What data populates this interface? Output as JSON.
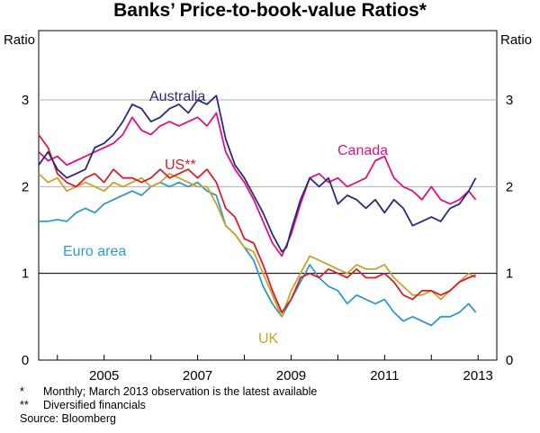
{
  "chart_data": {
    "type": "line",
    "title": "Banks’ Price-to-book-value Ratios*",
    "ylabel_left": "Ratio",
    "ylabel_right": "Ratio",
    "xlim": [
      2003.6,
      2013.4
    ],
    "ylim": [
      0,
      3.8
    ],
    "x_ticks": [
      2005,
      2007,
      2009,
      2011,
      2013
    ],
    "y_ticks": [
      0,
      1,
      2,
      3
    ],
    "reference_line": 1,
    "series": [
      {
        "name": "Australia",
        "color": "#2a2a7c",
        "x": [
          2003.6,
          2003.8,
          2004.0,
          2004.2,
          2004.4,
          2004.6,
          2004.8,
          2005.0,
          2005.2,
          2005.4,
          2005.6,
          2005.8,
          2006.0,
          2006.2,
          2006.4,
          2006.6,
          2006.8,
          2007.0,
          2007.2,
          2007.4,
          2007.6,
          2007.8,
          2008.0,
          2008.2,
          2008.4,
          2008.6,
          2008.8,
          2008.9,
          2009.0,
          2009.2,
          2009.4,
          2009.6,
          2009.8,
          2010.0,
          2010.2,
          2010.4,
          2010.6,
          2010.8,
          2011.0,
          2011.2,
          2011.4,
          2011.6,
          2011.8,
          2012.0,
          2012.2,
          2012.4,
          2012.6,
          2012.8,
          2012.95
        ],
        "values": [
          2.25,
          2.4,
          2.2,
          2.1,
          2.15,
          2.2,
          2.45,
          2.5,
          2.6,
          2.75,
          2.95,
          2.9,
          2.75,
          2.8,
          2.9,
          2.95,
          2.85,
          3.0,
          2.95,
          3.05,
          2.55,
          2.25,
          2.1,
          1.9,
          1.7,
          1.45,
          1.25,
          1.3,
          1.5,
          1.85,
          2.1,
          2.0,
          2.1,
          1.8,
          1.9,
          1.85,
          1.75,
          1.85,
          1.7,
          1.85,
          1.75,
          1.55,
          1.6,
          1.65,
          1.6,
          1.75,
          1.8,
          1.95,
          2.1
        ]
      },
      {
        "name": "Canada",
        "color": "#e0117f",
        "x": [
          2003.6,
          2003.8,
          2004.0,
          2004.2,
          2004.4,
          2004.6,
          2004.8,
          2005.0,
          2005.2,
          2005.4,
          2005.6,
          2005.8,
          2006.0,
          2006.2,
          2006.4,
          2006.6,
          2006.8,
          2007.0,
          2007.2,
          2007.4,
          2007.6,
          2007.8,
          2008.0,
          2008.2,
          2008.4,
          2008.6,
          2008.8,
          2009.0,
          2009.2,
          2009.4,
          2009.6,
          2009.8,
          2010.0,
          2010.2,
          2010.4,
          2010.6,
          2010.8,
          2011.0,
          2011.2,
          2011.4,
          2011.6,
          2011.8,
          2012.0,
          2012.2,
          2012.4,
          2012.6,
          2012.8,
          2012.95
        ],
        "values": [
          2.4,
          2.3,
          2.35,
          2.25,
          2.3,
          2.35,
          2.4,
          2.45,
          2.5,
          2.6,
          2.8,
          2.65,
          2.6,
          2.7,
          2.75,
          2.7,
          2.75,
          2.8,
          2.7,
          2.85,
          2.4,
          2.2,
          2.05,
          1.85,
          1.6,
          1.35,
          1.2,
          1.45,
          1.8,
          2.1,
          2.15,
          2.05,
          2.1,
          2.0,
          2.05,
          2.1,
          2.3,
          2.35,
          2.1,
          2.0,
          1.95,
          1.85,
          2.0,
          1.85,
          1.8,
          1.85,
          1.95,
          1.85
        ]
      },
      {
        "name": "US**",
        "color": "#d4202b",
        "x": [
          2003.6,
          2003.8,
          2004.0,
          2004.2,
          2004.4,
          2004.6,
          2004.8,
          2005.0,
          2005.2,
          2005.4,
          2005.6,
          2005.8,
          2006.0,
          2006.2,
          2006.4,
          2006.6,
          2006.8,
          2007.0,
          2007.2,
          2007.4,
          2007.6,
          2007.8,
          2008.0,
          2008.2,
          2008.4,
          2008.6,
          2008.8,
          2009.0,
          2009.2,
          2009.4,
          2009.6,
          2009.8,
          2010.0,
          2010.2,
          2010.4,
          2010.6,
          2010.8,
          2011.0,
          2011.2,
          2011.4,
          2011.6,
          2011.8,
          2012.0,
          2012.2,
          2012.4,
          2012.6,
          2012.8,
          2012.95
        ],
        "values": [
          2.6,
          2.45,
          2.15,
          2.05,
          2.0,
          2.1,
          2.15,
          2.05,
          2.2,
          2.1,
          2.1,
          2.05,
          2.1,
          2.2,
          2.1,
          2.15,
          2.2,
          2.1,
          2.2,
          2.05,
          1.75,
          1.65,
          1.4,
          1.35,
          1.1,
          0.8,
          0.55,
          0.7,
          0.95,
          1.0,
          0.95,
          1.05,
          1.0,
          0.95,
          1.05,
          0.95,
          0.95,
          1.0,
          0.9,
          0.75,
          0.7,
          0.8,
          0.8,
          0.75,
          0.8,
          0.9,
          0.95,
          0.98
        ]
      },
      {
        "name": "UK",
        "color": "#c8a42a",
        "x": [
          2003.6,
          2003.8,
          2004.0,
          2004.2,
          2004.4,
          2004.6,
          2004.8,
          2005.0,
          2005.2,
          2005.4,
          2005.6,
          2005.8,
          2006.0,
          2006.2,
          2006.4,
          2006.6,
          2006.8,
          2007.0,
          2007.2,
          2007.4,
          2007.6,
          2007.8,
          2008.0,
          2008.2,
          2008.4,
          2008.6,
          2008.8,
          2009.0,
          2009.2,
          2009.4,
          2009.6,
          2009.8,
          2010.0,
          2010.2,
          2010.4,
          2010.6,
          2010.8,
          2011.0,
          2011.2,
          2011.4,
          2011.6,
          2011.8,
          2012.0,
          2012.2,
          2012.4,
          2012.6,
          2012.8,
          2012.95
        ],
        "values": [
          2.15,
          2.05,
          2.1,
          1.95,
          2.0,
          2.05,
          2.0,
          1.95,
          2.05,
          2.0,
          2.05,
          2.1,
          2.0,
          2.05,
          2.15,
          2.1,
          2.05,
          2.0,
          2.0,
          1.8,
          1.55,
          1.45,
          1.3,
          1.25,
          1.0,
          0.75,
          0.5,
          0.8,
          1.0,
          1.2,
          1.15,
          1.1,
          1.05,
          1.0,
          1.1,
          1.05,
          1.05,
          1.1,
          0.95,
          0.85,
          0.75,
          0.75,
          0.8,
          0.7,
          0.8,
          0.9,
          1.0,
          0.95
        ]
      },
      {
        "name": "Euro area",
        "color": "#2f9ac8",
        "x": [
          2003.6,
          2003.8,
          2004.0,
          2004.2,
          2004.4,
          2004.6,
          2004.8,
          2005.0,
          2005.2,
          2005.4,
          2005.6,
          2005.8,
          2006.0,
          2006.2,
          2006.4,
          2006.6,
          2006.8,
          2007.0,
          2007.2,
          2007.4,
          2007.6,
          2007.8,
          2008.0,
          2008.2,
          2008.4,
          2008.6,
          2008.8,
          2009.0,
          2009.2,
          2009.4,
          2009.6,
          2009.8,
          2010.0,
          2010.2,
          2010.4,
          2010.6,
          2010.8,
          2011.0,
          2011.2,
          2011.4,
          2011.6,
          2011.8,
          2012.0,
          2012.2,
          2012.4,
          2012.6,
          2012.8,
          2012.95
        ],
        "values": [
          1.6,
          1.6,
          1.62,
          1.6,
          1.7,
          1.75,
          1.7,
          1.8,
          1.85,
          1.9,
          1.95,
          1.9,
          2.0,
          2.05,
          2.0,
          2.05,
          2.0,
          2.05,
          1.95,
          1.9,
          1.55,
          1.45,
          1.3,
          1.15,
          0.85,
          0.65,
          0.5,
          0.7,
          0.9,
          1.1,
          0.95,
          0.85,
          0.8,
          0.65,
          0.75,
          0.7,
          0.65,
          0.7,
          0.55,
          0.45,
          0.5,
          0.45,
          0.4,
          0.5,
          0.5,
          0.55,
          0.65,
          0.55
        ]
      }
    ],
    "labels": {
      "australia": "Australia",
      "canada": "Canada",
      "us": "US**",
      "uk": "UK",
      "euro": "Euro area"
    }
  },
  "footnotes": [
    {
      "mark": "*",
      "text": "Monthly; March 2013 observation is the latest available"
    },
    {
      "mark": "**",
      "text": "Diversified financials"
    }
  ],
  "source": "Source: Bloomberg"
}
